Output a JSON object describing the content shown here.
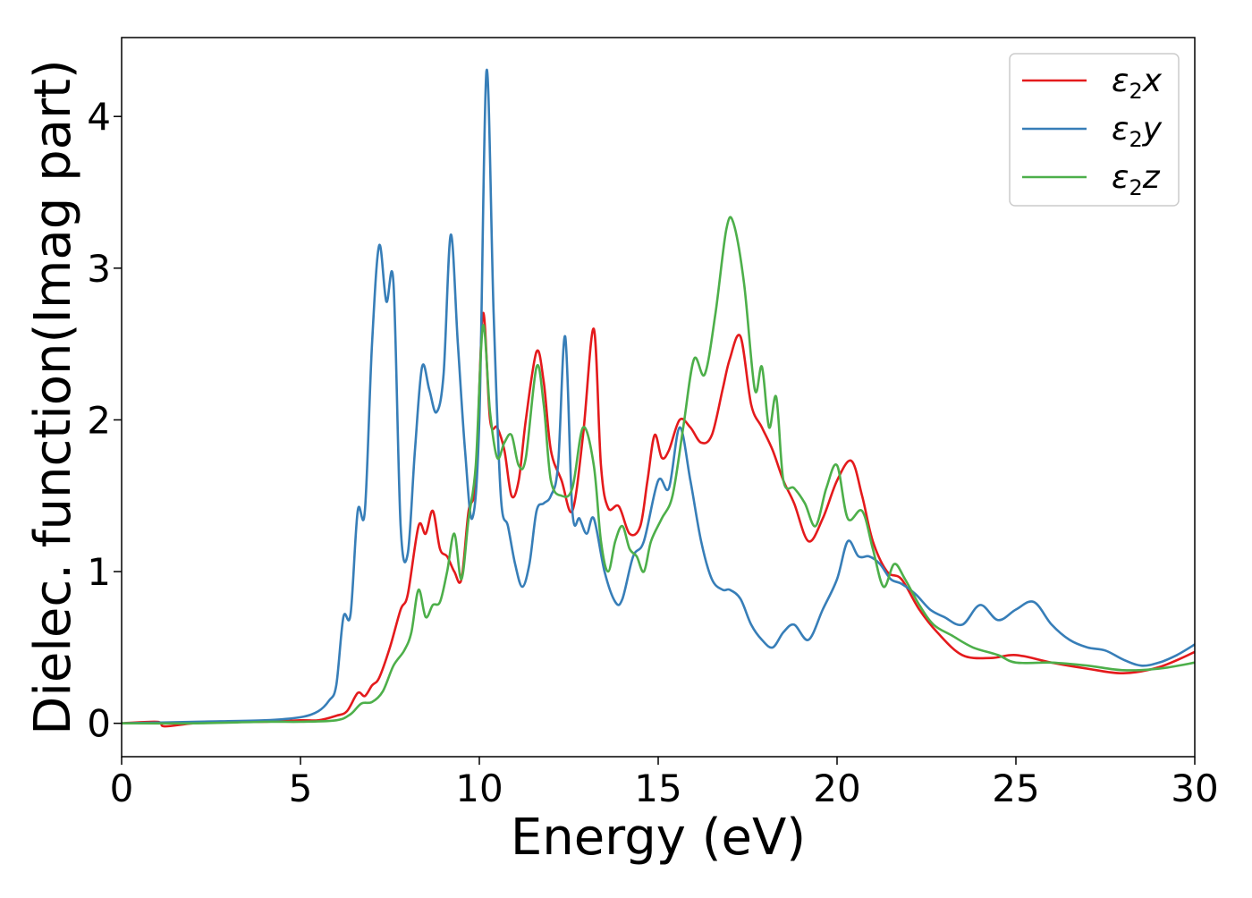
{
  "chart_data": {
    "type": "line",
    "xlabel": "Energy (eV)",
    "ylabel": "Dielec. function(Imag part)",
    "xlim": [
      0,
      30
    ],
    "ylim": [
      -0.22,
      4.52
    ],
    "xticks": [
      0,
      5,
      10,
      15,
      20,
      25,
      30
    ],
    "yticks": [
      0,
      1,
      2,
      3,
      4
    ],
    "grid": false,
    "legend_position": "top-right",
    "series": [
      {
        "name": "ε2x",
        "name_base": "ε",
        "name_sub": "2",
        "name_suffix": "x",
        "color": "#e41a1c",
        "x": [
          0,
          1,
          1.2,
          2,
          3,
          4,
          5,
          5.5,
          6,
          6.3,
          6.6,
          6.8,
          7,
          7.2,
          7.5,
          7.8,
          8,
          8.3,
          8.5,
          8.7,
          8.9,
          9.1,
          9.3,
          9.5,
          9.7,
          9.9,
          10.1,
          10.3,
          10.5,
          10.7,
          10.9,
          11.1,
          11.3,
          11.6,
          11.8,
          12,
          12.3,
          12.6,
          12.9,
          13.2,
          13.4,
          13.6,
          13.9,
          14.2,
          14.5,
          14.7,
          14.9,
          15.1,
          15.3,
          15.6,
          15.9,
          16.2,
          16.5,
          16.8,
          17,
          17.3,
          17.6,
          17.9,
          18.2,
          18.5,
          18.8,
          19.2,
          19.6,
          20,
          20.4,
          20.7,
          21,
          21.4,
          21.8,
          22.3,
          22.8,
          23.5,
          24.3,
          25,
          26,
          27,
          28,
          29,
          30
        ],
        "y": [
          0,
          0.01,
          -0.02,
          0,
          0.01,
          0.01,
          0.02,
          0.02,
          0.05,
          0.08,
          0.2,
          0.18,
          0.25,
          0.3,
          0.5,
          0.75,
          0.85,
          1.3,
          1.25,
          1.4,
          1.15,
          1.1,
          1.0,
          0.95,
          1.4,
          1.6,
          2.7,
          2.0,
          1.95,
          1.8,
          1.5,
          1.6,
          2.0,
          2.45,
          2.25,
          1.8,
          1.6,
          1.4,
          1.9,
          2.6,
          1.7,
          1.42,
          1.43,
          1.25,
          1.3,
          1.6,
          1.9,
          1.75,
          1.8,
          2.0,
          1.95,
          1.85,
          1.9,
          2.2,
          2.4,
          2.55,
          2.1,
          1.95,
          1.8,
          1.6,
          1.45,
          1.2,
          1.35,
          1.6,
          1.73,
          1.5,
          1.2,
          1.0,
          0.95,
          0.75,
          0.6,
          0.45,
          0.43,
          0.45,
          0.4,
          0.36,
          0.33,
          0.37,
          0.47
        ]
      },
      {
        "name": "ε2y",
        "name_base": "ε",
        "name_sub": "2",
        "name_suffix": "y",
        "color": "#377eb8",
        "x": [
          0,
          2,
          4,
          5,
          5.5,
          5.8,
          6,
          6.2,
          6.4,
          6.6,
          6.8,
          7,
          7.2,
          7.4,
          7.6,
          7.8,
          8,
          8.2,
          8.4,
          8.6,
          8.8,
          9,
          9.2,
          9.4,
          9.6,
          9.8,
          10,
          10.2,
          10.4,
          10.6,
          10.8,
          11,
          11.2,
          11.4,
          11.6,
          11.8,
          12,
          12.2,
          12.4,
          12.6,
          12.8,
          13,
          13.2,
          13.5,
          13.8,
          14,
          14.3,
          14.6,
          15,
          15.3,
          15.6,
          15.9,
          16.2,
          16.5,
          16.8,
          17,
          17.3,
          17.6,
          17.9,
          18.2,
          18.5,
          18.8,
          19.2,
          19.6,
          20,
          20.3,
          20.6,
          20.9,
          21.2,
          21.5,
          21.8,
          22.2,
          22.6,
          23,
          23.5,
          24,
          24.5,
          25,
          25.5,
          26,
          26.5,
          27,
          27.5,
          28,
          28.5,
          29,
          29.5,
          30
        ],
        "y": [
          0,
          0.01,
          0.02,
          0.04,
          0.08,
          0.15,
          0.25,
          0.7,
          0.72,
          1.4,
          1.4,
          2.5,
          3.15,
          2.78,
          2.9,
          1.3,
          1.12,
          1.8,
          2.35,
          2.2,
          2.05,
          2.3,
          3.22,
          2.5,
          1.8,
          1.35,
          2.0,
          4.3,
          2.7,
          1.5,
          1.3,
          1.05,
          0.9,
          1.05,
          1.4,
          1.45,
          1.5,
          1.7,
          2.55,
          1.4,
          1.35,
          1.25,
          1.35,
          1.0,
          0.8,
          0.82,
          1.1,
          1.2,
          1.6,
          1.55,
          1.95,
          1.6,
          1.2,
          0.95,
          0.88,
          0.88,
          0.82,
          0.65,
          0.55,
          0.5,
          0.6,
          0.65,
          0.55,
          0.75,
          0.95,
          1.2,
          1.1,
          1.1,
          1.05,
          0.95,
          0.92,
          0.85,
          0.75,
          0.7,
          0.65,
          0.78,
          0.68,
          0.75,
          0.8,
          0.65,
          0.55,
          0.5,
          0.48,
          0.42,
          0.38,
          0.4,
          0.45,
          0.52
        ]
      },
      {
        "name": "ε2z",
        "name_base": "ε",
        "name_sub": "2",
        "name_suffix": "z",
        "color": "#4daf4a",
        "x": [
          0,
          2,
          4,
          5,
          6,
          6.4,
          6.7,
          7,
          7.3,
          7.6,
          7.9,
          8.1,
          8.3,
          8.5,
          8.7,
          8.9,
          9.1,
          9.3,
          9.5,
          9.7,
          9.9,
          10.1,
          10.3,
          10.5,
          10.7,
          10.9,
          11.1,
          11.3,
          11.6,
          11.8,
          12,
          12.3,
          12.6,
          12.9,
          13.2,
          13.4,
          13.6,
          13.8,
          14,
          14.2,
          14.4,
          14.6,
          14.8,
          15.1,
          15.4,
          15.7,
          16,
          16.3,
          16.6,
          16.9,
          17.1,
          17.4,
          17.7,
          17.9,
          18.1,
          18.3,
          18.5,
          18.8,
          19.1,
          19.4,
          19.7,
          20,
          20.3,
          20.7,
          21,
          21.3,
          21.6,
          21.9,
          22.3,
          22.7,
          23.2,
          23.8,
          24.5,
          25,
          26,
          27,
          28,
          29,
          30
        ],
        "y": [
          0,
          0,
          0.01,
          0.01,
          0.02,
          0.06,
          0.13,
          0.14,
          0.21,
          0.38,
          0.48,
          0.6,
          0.88,
          0.7,
          0.78,
          0.8,
          1.0,
          1.25,
          0.95,
          1.35,
          1.7,
          2.62,
          2.05,
          1.75,
          1.85,
          1.9,
          1.7,
          1.75,
          2.35,
          2.1,
          1.6,
          1.5,
          1.55,
          1.95,
          1.7,
          1.2,
          1.0,
          1.2,
          1.3,
          1.15,
          1.1,
          1.0,
          1.2,
          1.35,
          1.5,
          1.95,
          2.4,
          2.3,
          2.7,
          3.25,
          3.3,
          2.9,
          2.2,
          2.35,
          1.95,
          2.15,
          1.6,
          1.55,
          1.45,
          1.3,
          1.55,
          1.7,
          1.35,
          1.4,
          1.15,
          0.9,
          1.05,
          0.95,
          0.78,
          0.65,
          0.58,
          0.5,
          0.45,
          0.4,
          0.4,
          0.38,
          0.35,
          0.36,
          0.4
        ]
      }
    ]
  }
}
